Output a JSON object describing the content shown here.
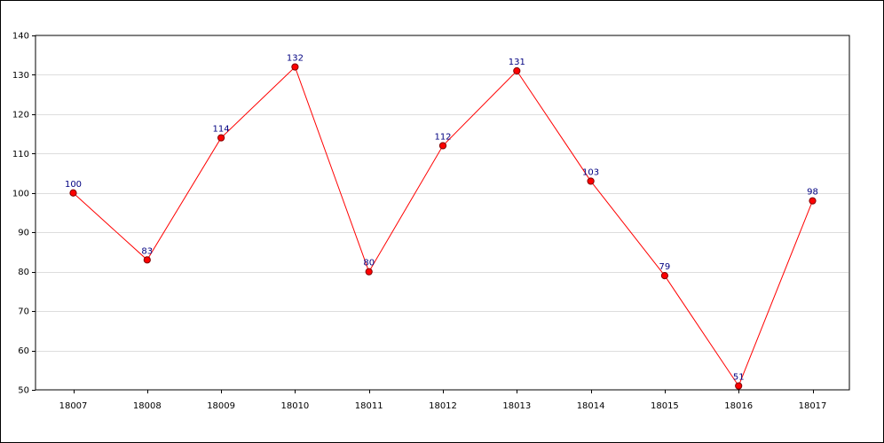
{
  "chart_data": {
    "type": "line",
    "title": "",
    "xlabel": "",
    "ylabel": "",
    "categories": [
      "18007",
      "18008",
      "18009",
      "18010",
      "18011",
      "18012",
      "18013",
      "18014",
      "18015",
      "18016",
      "18017"
    ],
    "series": [
      {
        "values": [
          100,
          83,
          114,
          132,
          80,
          112,
          131,
          103,
          79,
          51,
          98
        ],
        "line_color": "#ff0000",
        "marker_fill": "#ff0000",
        "marker_stroke": "#800000",
        "label_color": "#000080"
      }
    ],
    "ylim": [
      50,
      140
    ],
    "yticks": [
      50,
      60,
      70,
      80,
      90,
      100,
      110,
      120,
      130,
      140
    ],
    "ytick_labels": [
      "50",
      "60",
      "70",
      "80",
      "90",
      "100",
      "110",
      "120",
      "130",
      "140"
    ],
    "grid": true,
    "grid_color": "#dddddd",
    "legend": "none"
  }
}
